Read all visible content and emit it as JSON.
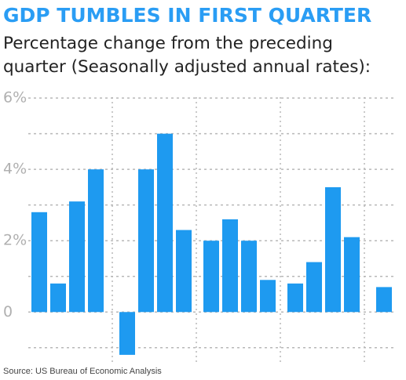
{
  "chart_data": {
    "type": "bar",
    "title": "GDP TUMBLES IN FIRST QUARTER",
    "subtitle": [
      "Percentage change from the preceding",
      "quarter (Seasonally adjusted annual rates):"
    ],
    "source": "Source: US Bureau of Economic Analysis",
    "categories": [
      null,
      null,
      null,
      null,
      null,
      null,
      null,
      null,
      null,
      null,
      null,
      null,
      null,
      null,
      null,
      null,
      null
    ],
    "values": [
      2.8,
      0.8,
      3.1,
      4.0,
      -1.2,
      4.0,
      5.0,
      2.3,
      2.0,
      2.6,
      2.0,
      0.9,
      0.8,
      1.4,
      3.5,
      2.1,
      0.7
    ],
    "color": "#1e9af0",
    "ylim": [
      -1.4,
      6.2
    ],
    "yticks": [
      {
        "value": 0,
        "label": "0"
      },
      {
        "value": 2,
        "label": "2%"
      },
      {
        "value": 4,
        "label": "4%"
      },
      {
        "value": 6,
        "label": "6%"
      }
    ],
    "minor_yticks": [
      -1,
      1,
      3,
      5
    ],
    "grid": true
  }
}
